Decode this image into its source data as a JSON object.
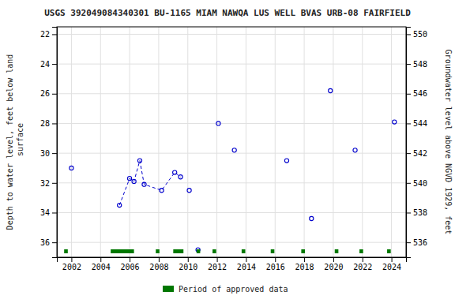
{
  "chart_data": {
    "type": "scatter",
    "title": "USGS 392049084340301 BU-1165 MIAM NAWQA LUS WELL BVAS URB-08 FAIRFIELD",
    "ylabel": "Depth to water level, feet below land\n surface",
    "y2label": "Groundwater level above NGVD 1929, feet",
    "xlim": [
      2001,
      2025
    ],
    "ylim": [
      37.0,
      21.5
    ],
    "y2lim": [
      535.0,
      550.5
    ],
    "xticks": [
      2002,
      2004,
      2006,
      2008,
      2010,
      2012,
      2014,
      2016,
      2018,
      2020,
      2022,
      2024
    ],
    "yticks": [
      22,
      24,
      26,
      28,
      30,
      32,
      34,
      36
    ],
    "y2ticks": [
      536,
      538,
      540,
      542,
      544,
      546,
      548,
      550
    ],
    "grid": true,
    "series": [
      {
        "type": "scatter",
        "color": "#0000cc",
        "marker": "circle",
        "x": [
          2002.0,
          2005.3,
          2006.0,
          2006.3,
          2006.7,
          2007.0,
          2008.2,
          2009.1,
          2009.5,
          2010.1,
          2010.7,
          2012.1,
          2013.2,
          2016.8,
          2018.5,
          2019.8,
          2021.5,
          2024.2
        ],
        "values": [
          31.0,
          33.5,
          31.7,
          31.9,
          30.5,
          32.1,
          32.5,
          31.3,
          31.6,
          32.5,
          36.5,
          28.0,
          29.8,
          30.5,
          34.4,
          25.8,
          29.8,
          27.9
        ]
      },
      {
        "type": "line",
        "color": "#0000cc",
        "line_style": "dashed",
        "x": [
          2005.3,
          2006.0,
          2006.3,
          2006.7,
          2007.0,
          2008.2,
          2009.1,
          2009.5
        ],
        "values": [
          33.5,
          31.7,
          31.9,
          30.5,
          32.1,
          32.5,
          31.3,
          31.6
        ]
      },
      {
        "type": "bar",
        "orientation": "horizontal",
        "name": "Period of approved data",
        "color": "#007700",
        "x": [
          2001.5,
          2004.7,
          2007.8,
          2009.0,
          2010.6,
          2011.7,
          2013.7,
          2015.7,
          2017.8,
          2020.1,
          2021.8,
          2023.7
        ],
        "widths": [
          0.25,
          1.6,
          0.25,
          0.7,
          0.25,
          0.25,
          0.25,
          0.25,
          0.25,
          0.25,
          0.25,
          0.25
        ]
      }
    ]
  }
}
